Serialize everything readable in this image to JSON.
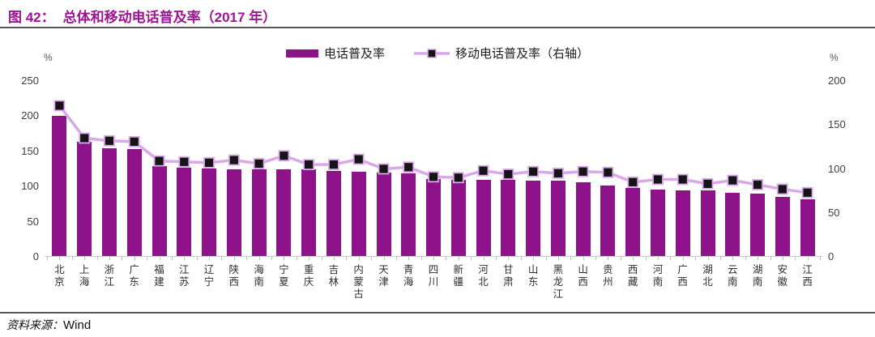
{
  "header": {
    "figure_label": "图 42：",
    "title": "总体和移动电话普及率（2017 年）"
  },
  "legend": {
    "bar_label": "电话普及率",
    "line_label": "移动电话普及率（右轴）"
  },
  "axes": {
    "left_unit": "%",
    "right_unit": "%",
    "left_ticks": [
      "250",
      "200",
      "150",
      "100",
      "50",
      "0"
    ],
    "right_ticks": [
      "200",
      "150",
      "100",
      "50",
      "0"
    ]
  },
  "footer": {
    "source_label": "资料来源：",
    "source_value": "Wind"
  },
  "colors": {
    "bar": "#8E128A",
    "line": "#D9A8E8",
    "marker": "#151515",
    "title": "#9C1590"
  },
  "chart_data": {
    "type": "bar",
    "title": "图 42：总体和移动电话普及率（2017 年）",
    "legend_position": "top",
    "grid": false,
    "categories": [
      "北京",
      "上海",
      "浙江",
      "广东",
      "福建",
      "江苏",
      "辽宁",
      "陕西",
      "海南",
      "宁夏",
      "重庆",
      "吉林",
      "内蒙古",
      "天津",
      "青海",
      "四川",
      "新疆",
      "河北",
      "甘肃",
      "山东",
      "黑龙江",
      "山西",
      "贵州",
      "西藏",
      "河南",
      "广西",
      "湖北",
      "云南",
      "湖南",
      "安徽",
      "江西"
    ],
    "series": [
      {
        "name": "电话普及率",
        "type": "bar",
        "axis": "left",
        "values": [
          201,
          164,
          155,
          153,
          129,
          127,
          126,
          125,
          125,
          124,
          124,
          122,
          121,
          120,
          119,
          111,
          110,
          110,
          109,
          108,
          108,
          106,
          102,
          98,
          96,
          95,
          94,
          91,
          90,
          85,
          82
        ]
      },
      {
        "name": "移动电话普及率（右轴）",
        "type": "line",
        "axis": "right",
        "values": [
          172,
          135,
          132,
          131,
          109,
          108,
          107,
          110,
          106,
          115,
          105,
          105,
          111,
          100,
          102,
          91,
          90,
          98,
          94,
          97,
          95,
          97,
          96,
          85,
          88,
          88,
          83,
          87,
          82,
          77,
          73
        ]
      }
    ],
    "left_axis": {
      "label": "%",
      "range": [
        0,
        250
      ],
      "ticks": [
        0,
        50,
        100,
        150,
        200,
        250
      ]
    },
    "right_axis": {
      "label": "%",
      "range": [
        0,
        200
      ],
      "ticks": [
        0,
        50,
        100,
        150,
        200
      ]
    }
  }
}
